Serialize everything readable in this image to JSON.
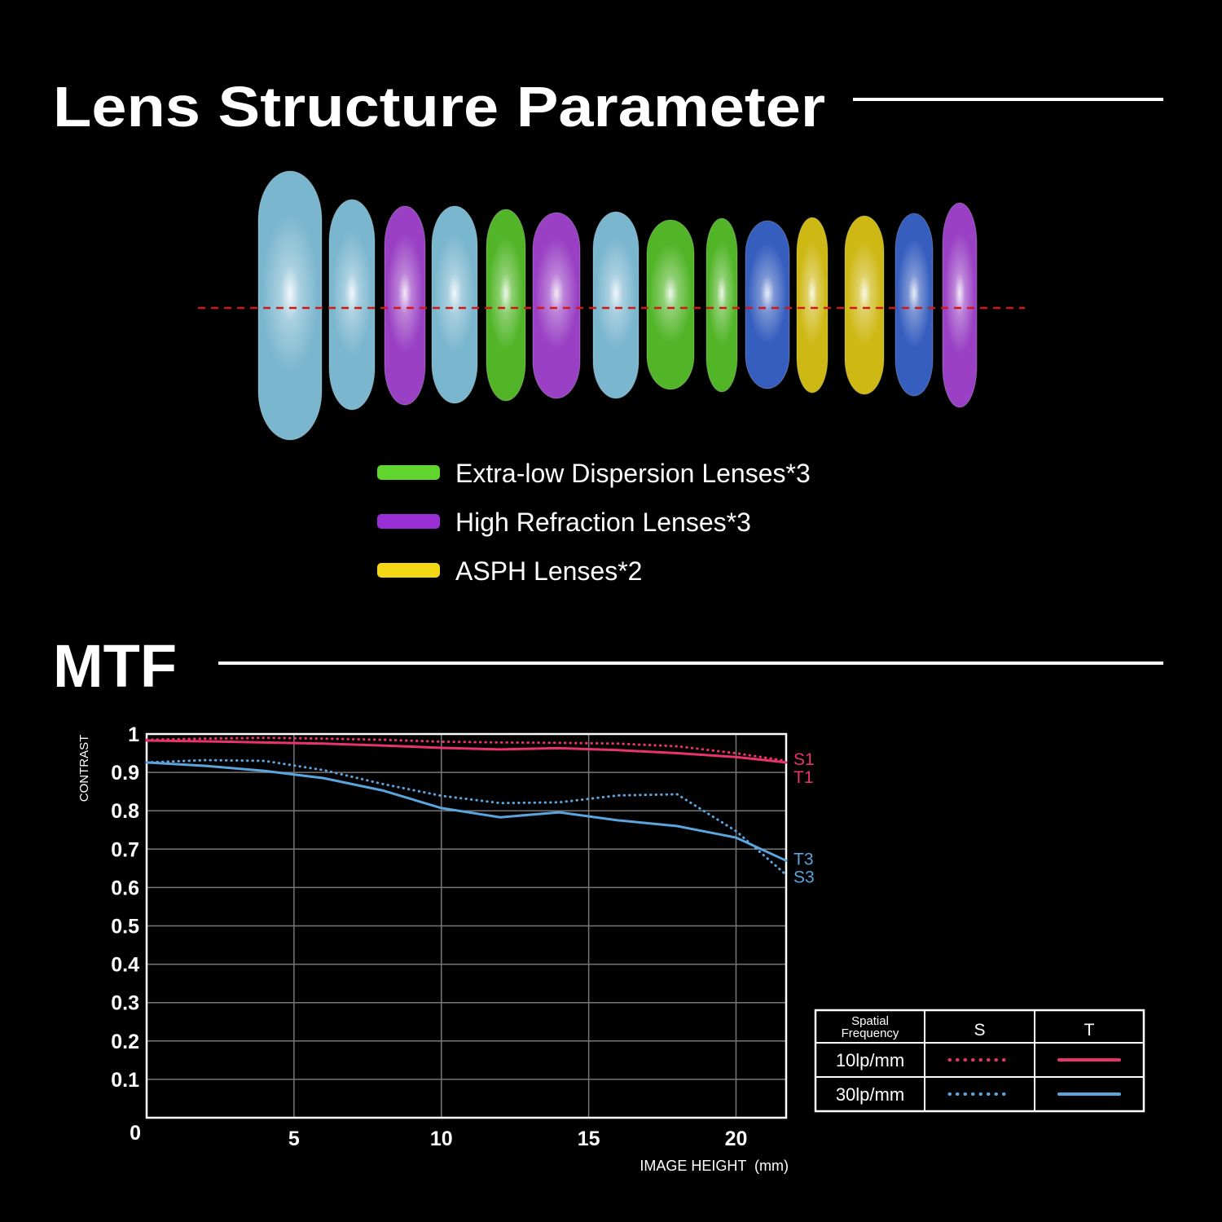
{
  "title": "Lens Structure Parameter",
  "lens_legend": [
    {
      "label": "Extra-low Dispersion Lenses*3",
      "color": "#5fd52e"
    },
    {
      "label": "High Refraction Lenses*3",
      "color": "#9b2fd6"
    },
    {
      "label": "ASPH Lenses*2",
      "color": "#f2d816"
    }
  ],
  "chart_data": {
    "type": "line",
    "title": "MTF",
    "x_label": "IMAGE HEIGHT  (mm)",
    "y_label": "CONTRAST",
    "x": [
      0,
      2,
      4,
      6,
      8,
      10,
      12,
      14,
      16,
      18,
      20,
      21.7
    ],
    "series": [
      {
        "name": "S1",
        "color": "#e8336d",
        "style": "dotted",
        "values": [
          0.985,
          0.988,
          0.99,
          0.988,
          0.985,
          0.98,
          0.978,
          0.977,
          0.975,
          0.968,
          0.95,
          0.93
        ]
      },
      {
        "name": "T1",
        "color": "#e8336d",
        "style": "solid",
        "values": [
          0.983,
          0.981,
          0.978,
          0.975,
          0.97,
          0.964,
          0.96,
          0.963,
          0.958,
          0.95,
          0.94,
          0.926
        ]
      },
      {
        "name": "S3",
        "color": "#5aa5dd",
        "style": "dotted",
        "values": [
          0.926,
          0.932,
          0.93,
          0.906,
          0.87,
          0.839,
          0.82,
          0.822,
          0.84,
          0.843,
          0.747,
          0.633
        ]
      },
      {
        "name": "T3",
        "color": "#5aa5dd",
        "style": "solid",
        "values": [
          0.926,
          0.917,
          0.904,
          0.885,
          0.853,
          0.807,
          0.783,
          0.796,
          0.775,
          0.76,
          0.73,
          0.67
        ]
      }
    ],
    "xlim": [
      0,
      21.7
    ],
    "ylim": [
      0,
      1
    ],
    "xticks": [
      5,
      10,
      15,
      20
    ],
    "yticks": [
      0,
      0.1,
      0.2,
      0.3,
      0.4,
      0.5,
      0.6,
      0.7,
      0.8,
      0.9,
      1
    ],
    "grid": true,
    "legend_table": {
      "frequency_header": [
        "Spatial",
        "Frequency"
      ],
      "columns": [
        "S",
        "T"
      ],
      "rows": [
        "10lp/mm",
        "30lp/mm"
      ]
    }
  }
}
